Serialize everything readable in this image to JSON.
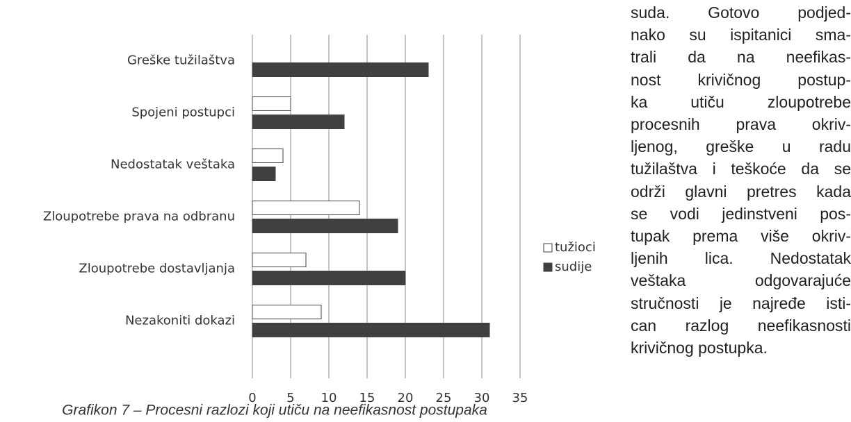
{
  "chart_data": {
    "type": "barh",
    "caption": "Grafikon 7 – Procesni razlozi koji utiču na neefikasnost postupaka",
    "categories": [
      "Greške tužilaštva",
      "Spojeni postupci",
      "Nedostatak veštaka",
      "Zloupotrebe prava na odbranu",
      "Zloupotrebe dostavljanja",
      "Nezakoniti dokazi"
    ],
    "series": [
      {
        "name": "tužioci",
        "color": "#ffffff",
        "values": [
          null,
          5,
          4,
          14,
          7,
          9
        ]
      },
      {
        "name": "sudije",
        "color": "#404040",
        "values": [
          23,
          12,
          3,
          19,
          20,
          31
        ]
      }
    ],
    "xlim": [
      0,
      35
    ],
    "xticks": [
      0,
      5,
      10,
      15,
      20,
      25,
      30,
      35
    ],
    "grid": true,
    "legend": "right"
  },
  "text": {
    "lines": [
      "suda. Gotovo podjed-",
      "nako su ispitanici sma-",
      "trali da na neefikas-",
      "nost krivičnog postup-",
      "ka utiču zloupotrebe",
      "procesnih prava okriv-",
      "ljenog, greške u radu",
      "tužilaštva i teškoće da se",
      "održi glavni pretres kada",
      "se vodi jedinstveni pos-",
      "tupak prema više okriv-",
      "ljenih lica. Nedostatak",
      "veštaka odgovarajuće",
      "stručnosti je najređe isti-",
      "can razlog neefikasnosti",
      "krivičnog postupka."
    ]
  }
}
